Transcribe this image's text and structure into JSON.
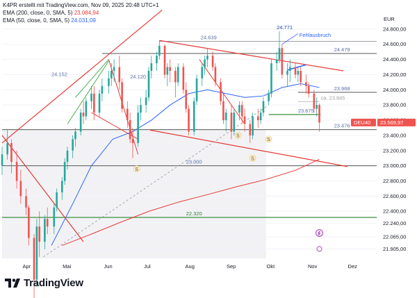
{
  "header": {
    "title": "K4PR erstellt mit TradingView.com, Nov 09, 2025 20:48 UTC+1",
    "ema200_label": "EMA (200, close, 0, SMA, 5)",
    "ema200_value": "23.084,94",
    "ema50_label": "EMA (50, close, 0, SMA, 5)",
    "ema50_value": "24.031,09"
  },
  "currency": "EUR",
  "symbol_tag": "DEU40",
  "last_price_tag": "23.569,97",
  "logo_text": "TradingView",
  "colors": {
    "up": "#26a69a",
    "down": "#ef5350",
    "ema200": "#e53935",
    "ema50": "#2962ff",
    "trendline": "#e53935",
    "support": "#388e3c",
    "level_gray": "#555555",
    "shade": "#e9e9ee"
  },
  "chart_data": {
    "type": "candlestick",
    "title": "",
    "ylim": [
      21780,
      25000
    ],
    "y_ticks": [
      "24.800,00",
      "24.600,00",
      "24.400,00",
      "24.200,00",
      "24.000,00",
      "23.800,00",
      "23.600,00",
      "23.400,00",
      "23.200,00",
      "23.000,00",
      "22.800,00",
      "22.600,00",
      "22.400,00",
      "22.240,00",
      "22.065,00",
      "21.905,00"
    ],
    "y_tick_values": [
      24800,
      24600,
      24400,
      24200,
      24000,
      23800,
      23600,
      23400,
      23200,
      23000,
      22800,
      22600,
      22400,
      22240,
      22065,
      21905
    ],
    "x_ticks": [
      {
        "label": "Apr",
        "date": "2025-04-01"
      },
      {
        "label": "Mai",
        "date": "2025-05-01"
      },
      {
        "label": "Jun",
        "date": "2025-06-01"
      },
      {
        "label": "Jul",
        "date": "2025-07-01"
      },
      {
        "label": "Aug",
        "date": "2025-08-01"
      },
      {
        "label": "Sep",
        "date": "2025-09-01"
      },
      {
        "label": "Okt",
        "date": "2025-10-01"
      },
      {
        "label": "Nov",
        "date": "2025-11-01"
      },
      {
        "label": "Dez",
        "date": "2025-12-01"
      }
    ],
    "x_range": [
      "2025-03-14",
      "2025-12-20"
    ],
    "price_levels": [
      {
        "label": "24.771",
        "value": 24771
      },
      {
        "label": "24.639",
        "value": 24639
      },
      {
        "label": "24.479",
        "value": 24479
      },
      {
        "label": "24.152",
        "value": 24152
      },
      {
        "label": "24.120",
        "value": 24120
      },
      {
        "label": "23.968",
        "value": 23968
      },
      {
        "label": "ca. 23.845",
        "value": 23845
      },
      {
        "label": "23.675",
        "value": 23675
      },
      {
        "label": "23.476",
        "value": 23476
      },
      {
        "label": "23.000",
        "value": 23000
      },
      {
        "label": "22.320",
        "value": 22320
      }
    ],
    "annotations": [
      "Fehlausbruch",
      "S",
      "S",
      "S",
      "S"
    ],
    "series": [
      {
        "name": "EMA (200, close, 0, SMA, 5)",
        "last": 23084.94
      },
      {
        "name": "EMA (50, close, 0, SMA, 5)",
        "last": 24031.09
      }
    ],
    "last_close": 23569.97,
    "ohlc": [
      {
        "date": "2025-03-14",
        "o": 23000,
        "h": 23250,
        "l": 22880,
        "c": 23150
      },
      {
        "date": "2025-03-18",
        "o": 23150,
        "h": 23480,
        "l": 23080,
        "c": 23300
      },
      {
        "date": "2025-03-21",
        "o": 23300,
        "h": 23350,
        "l": 22900,
        "c": 23050
      },
      {
        "date": "2025-03-25",
        "o": 23050,
        "h": 23200,
        "l": 22700,
        "c": 22800
      },
      {
        "date": "2025-03-28",
        "o": 22800,
        "h": 22950,
        "l": 22500,
        "c": 22600
      },
      {
        "date": "2025-04-01",
        "o": 22600,
        "h": 22700,
        "l": 22350,
        "c": 22450
      },
      {
        "date": "2025-04-03",
        "o": 22450,
        "h": 22480,
        "l": 21950,
        "c": 22050
      },
      {
        "date": "2025-04-07",
        "o": 22050,
        "h": 22100,
        "l": 20600,
        "c": 21500
      },
      {
        "date": "2025-04-09",
        "o": 21500,
        "h": 22300,
        "l": 21400,
        "c": 22200
      },
      {
        "date": "2025-04-11",
        "o": 22200,
        "h": 22400,
        "l": 21800,
        "c": 22000
      },
      {
        "date": "2025-04-15",
        "o": 22000,
        "h": 22350,
        "l": 21900,
        "c": 22300
      },
      {
        "date": "2025-04-17",
        "o": 22300,
        "h": 22450,
        "l": 22100,
        "c": 22200
      },
      {
        "date": "2025-04-22",
        "o": 22200,
        "h": 22500,
        "l": 22100,
        "c": 22450
      },
      {
        "date": "2025-04-24",
        "o": 22450,
        "h": 22700,
        "l": 22400,
        "c": 22650
      },
      {
        "date": "2025-04-28",
        "o": 22650,
        "h": 22850,
        "l": 22550,
        "c": 22800
      },
      {
        "date": "2025-04-30",
        "o": 22800,
        "h": 23100,
        "l": 22750,
        "c": 23050
      },
      {
        "date": "2025-05-02",
        "o": 23050,
        "h": 23250,
        "l": 22950,
        "c": 23200
      },
      {
        "date": "2025-05-06",
        "o": 23200,
        "h": 23400,
        "l": 23100,
        "c": 23350
      },
      {
        "date": "2025-05-08",
        "o": 23350,
        "h": 23500,
        "l": 23250,
        "c": 23450
      },
      {
        "date": "2025-05-12",
        "o": 23450,
        "h": 23750,
        "l": 23400,
        "c": 23700
      },
      {
        "date": "2025-05-14",
        "o": 23700,
        "h": 23850,
        "l": 23550,
        "c": 23650
      },
      {
        "date": "2025-05-16",
        "o": 23650,
        "h": 23900,
        "l": 23600,
        "c": 23850
      },
      {
        "date": "2025-05-20",
        "o": 23850,
        "h": 24050,
        "l": 23750,
        "c": 23950
      },
      {
        "date": "2025-05-22",
        "o": 23950,
        "h": 24050,
        "l": 23600,
        "c": 23700
      },
      {
        "date": "2025-05-26",
        "o": 23700,
        "h": 24000,
        "l": 23650,
        "c": 23950
      },
      {
        "date": "2025-05-28",
        "o": 23950,
        "h": 24150,
        "l": 23850,
        "c": 24050
      },
      {
        "date": "2025-06-02",
        "o": 24050,
        "h": 24250,
        "l": 23950,
        "c": 24150
      },
      {
        "date": "2025-06-04",
        "o": 24150,
        "h": 24350,
        "l": 24050,
        "c": 24250
      },
      {
        "date": "2025-06-06",
        "o": 24250,
        "h": 24400,
        "l": 24100,
        "c": 24300
      },
      {
        "date": "2025-06-10",
        "o": 24300,
        "h": 24450,
        "l": 24000,
        "c": 24100
      },
      {
        "date": "2025-06-12",
        "o": 24100,
        "h": 24150,
        "l": 23700,
        "c": 23750
      },
      {
        "date": "2025-06-16",
        "o": 23750,
        "h": 23850,
        "l": 23500,
        "c": 23600
      },
      {
        "date": "2025-06-18",
        "o": 23600,
        "h": 23700,
        "l": 23300,
        "c": 23350
      },
      {
        "date": "2025-06-20",
        "o": 23350,
        "h": 23500,
        "l": 23100,
        "c": 23300
      },
      {
        "date": "2025-06-24",
        "o": 23300,
        "h": 23800,
        "l": 23250,
        "c": 23700
      },
      {
        "date": "2025-06-26",
        "o": 23700,
        "h": 23900,
        "l": 23600,
        "c": 23800
      },
      {
        "date": "2025-06-30",
        "o": 23800,
        "h": 24000,
        "l": 23700,
        "c": 23900
      },
      {
        "date": "2025-07-02",
        "o": 23900,
        "h": 24300,
        "l": 23850,
        "c": 24250
      },
      {
        "date": "2025-07-04",
        "o": 24250,
        "h": 24450,
        "l": 24150,
        "c": 24350
      },
      {
        "date": "2025-07-08",
        "o": 24350,
        "h": 24500,
        "l": 24250,
        "c": 24450
      },
      {
        "date": "2025-07-10",
        "o": 24450,
        "h": 24650,
        "l": 24400,
        "c": 24580
      },
      {
        "date": "2025-07-14",
        "o": 24580,
        "h": 24600,
        "l": 24150,
        "c": 24200
      },
      {
        "date": "2025-07-16",
        "o": 24200,
        "h": 24350,
        "l": 24050,
        "c": 24300
      },
      {
        "date": "2025-07-18",
        "o": 24300,
        "h": 24400,
        "l": 24100,
        "c": 24250
      },
      {
        "date": "2025-07-22",
        "o": 24250,
        "h": 24300,
        "l": 23900,
        "c": 24100
      },
      {
        "date": "2025-07-24",
        "o": 24100,
        "h": 24350,
        "l": 24050,
        "c": 24300
      },
      {
        "date": "2025-07-28",
        "o": 24300,
        "h": 24350,
        "l": 23950,
        "c": 24000
      },
      {
        "date": "2025-07-30",
        "o": 24000,
        "h": 24100,
        "l": 23700,
        "c": 23750
      },
      {
        "date": "2025-08-01",
        "o": 23750,
        "h": 23800,
        "l": 23400,
        "c": 23450
      },
      {
        "date": "2025-08-05",
        "o": 23450,
        "h": 23900,
        "l": 23400,
        "c": 23850
      },
      {
        "date": "2025-08-07",
        "o": 23850,
        "h": 24200,
        "l": 23800,
        "c": 24150
      },
      {
        "date": "2025-08-11",
        "o": 24150,
        "h": 24350,
        "l": 24050,
        "c": 24300
      },
      {
        "date": "2025-08-13",
        "o": 24300,
        "h": 24450,
        "l": 24200,
        "c": 24400
      },
      {
        "date": "2025-08-15",
        "o": 24400,
        "h": 24550,
        "l": 24300,
        "c": 24450
      },
      {
        "date": "2025-08-19",
        "o": 24450,
        "h": 24500,
        "l": 24250,
        "c": 24300
      },
      {
        "date": "2025-08-21",
        "o": 24300,
        "h": 24350,
        "l": 24050,
        "c": 24100
      },
      {
        "date": "2025-08-25",
        "o": 24100,
        "h": 24150,
        "l": 23800,
        "c": 23850
      },
      {
        "date": "2025-08-27",
        "o": 23850,
        "h": 23950,
        "l": 23550,
        "c": 23600
      },
      {
        "date": "2025-08-29",
        "o": 23600,
        "h": 23750,
        "l": 23450,
        "c": 23700
      },
      {
        "date": "2025-09-02",
        "o": 23700,
        "h": 23800,
        "l": 23350,
        "c": 23450
      },
      {
        "date": "2025-09-04",
        "o": 23450,
        "h": 23750,
        "l": 23400,
        "c": 23700
      },
      {
        "date": "2025-09-08",
        "o": 23700,
        "h": 23850,
        "l": 23600,
        "c": 23800
      },
      {
        "date": "2025-09-10",
        "o": 23800,
        "h": 23850,
        "l": 23550,
        "c": 23650
      },
      {
        "date": "2025-09-12",
        "o": 23650,
        "h": 23750,
        "l": 23450,
        "c": 23550
      },
      {
        "date": "2025-09-16",
        "o": 23550,
        "h": 23600,
        "l": 23300,
        "c": 23400
      },
      {
        "date": "2025-09-18",
        "o": 23400,
        "h": 23700,
        "l": 23350,
        "c": 23650
      },
      {
        "date": "2025-09-22",
        "o": 23650,
        "h": 23750,
        "l": 23500,
        "c": 23600
      },
      {
        "date": "2025-09-24",
        "o": 23600,
        "h": 23750,
        "l": 23550,
        "c": 23700
      },
      {
        "date": "2025-09-26",
        "o": 23700,
        "h": 23900,
        "l": 23650,
        "c": 23850
      },
      {
        "date": "2025-09-30",
        "o": 23850,
        "h": 24000,
        "l": 23800,
        "c": 23950
      },
      {
        "date": "2025-10-02",
        "o": 23950,
        "h": 24400,
        "l": 23900,
        "c": 24350
      },
      {
        "date": "2025-10-06",
        "o": 24350,
        "h": 24500,
        "l": 24250,
        "c": 24400
      },
      {
        "date": "2025-10-08",
        "o": 24400,
        "h": 24771,
        "l": 24350,
        "c": 24550
      },
      {
        "date": "2025-10-10",
        "o": 24550,
        "h": 24600,
        "l": 24150,
        "c": 24200
      },
      {
        "date": "2025-10-14",
        "o": 24200,
        "h": 24350,
        "l": 24050,
        "c": 24250
      },
      {
        "date": "2025-10-16",
        "o": 24250,
        "h": 24400,
        "l": 24100,
        "c": 24300
      },
      {
        "date": "2025-10-20",
        "o": 24300,
        "h": 24350,
        "l": 24150,
        "c": 24200
      },
      {
        "date": "2025-10-22",
        "o": 24200,
        "h": 24300,
        "l": 24100,
        "c": 24250
      },
      {
        "date": "2025-10-24",
        "o": 24250,
        "h": 24300,
        "l": 24050,
        "c": 24100
      },
      {
        "date": "2025-10-28",
        "o": 24100,
        "h": 24200,
        "l": 23950,
        "c": 24050
      },
      {
        "date": "2025-10-30",
        "o": 24050,
        "h": 24100,
        "l": 23900,
        "c": 23950
      },
      {
        "date": "2025-11-03",
        "o": 23950,
        "h": 24000,
        "l": 23700,
        "c": 23750
      },
      {
        "date": "2025-11-05",
        "o": 23750,
        "h": 23900,
        "l": 23650,
        "c": 23800
      },
      {
        "date": "2025-11-07",
        "o": 23800,
        "h": 23820,
        "l": 23450,
        "c": 23570
      }
    ]
  }
}
